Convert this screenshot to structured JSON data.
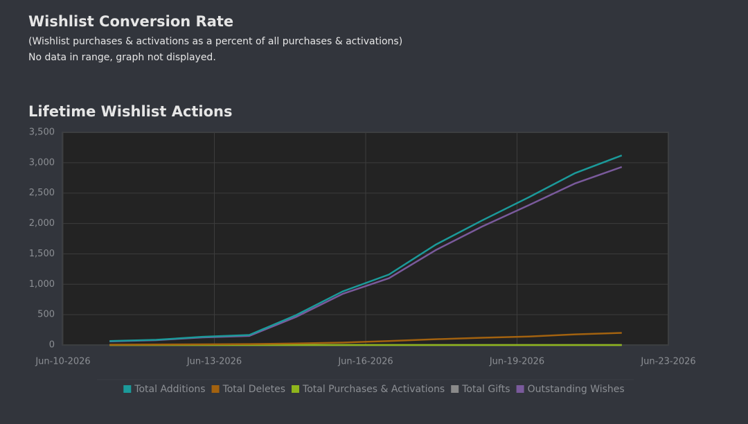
{
  "conversion": {
    "title": "Wishlist Conversion Rate",
    "subtitle": "(Wishlist purchases & activations as a percent of all purchases & activations)",
    "note": "No data in range, graph not displayed."
  },
  "chart_data": {
    "type": "line",
    "title": "Lifetime Wishlist Actions",
    "x": [
      "2026-06-11",
      "2026-06-12",
      "2026-06-13",
      "2026-06-14",
      "2026-06-15",
      "2026-06-16",
      "2026-06-17",
      "2026-06-18",
      "2026-06-19",
      "2026-06-20",
      "2026-06-21",
      "2026-06-22"
    ],
    "series": [
      {
        "name": "Total Additions",
        "color": "#1b9a9a",
        "values": [
          65,
          85,
          135,
          165,
          490,
          880,
          1160,
          1650,
          2050,
          2430,
          2830,
          3120
        ]
      },
      {
        "name": "Total Deletes",
        "color": "#a3620f",
        "values": [
          5,
          8,
          12,
          15,
          25,
          40,
          65,
          95,
          120,
          140,
          175,
          200
        ]
      },
      {
        "name": "Total Purchases & Activations",
        "color": "#8fb51c",
        "values": [
          0,
          0,
          0,
          0,
          0,
          0,
          0,
          0,
          0,
          0,
          0,
          0
        ]
      },
      {
        "name": "Total Gifts",
        "color": "#8a8a8a",
        "values": [
          0,
          0,
          0,
          0,
          0,
          0,
          0,
          0,
          0,
          0,
          0,
          0
        ]
      },
      {
        "name": "Outstanding Wishes",
        "color": "#7a5a9c",
        "values": [
          60,
          80,
          125,
          150,
          460,
          840,
          1100,
          1560,
          1950,
          2300,
          2660,
          2930
        ]
      }
    ],
    "xlim": [
      "2026-06-10T00:00",
      "2026-06-23T00:00"
    ],
    "xticks": [
      {
        "value": "2026-06-10T00:00",
        "label": "Jun-10-2026"
      },
      {
        "value": "2026-06-13T06:00",
        "label": "Jun-13-2026"
      },
      {
        "value": "2026-06-16T12:00",
        "label": "Jun-16-2026"
      },
      {
        "value": "2026-06-19T18:00",
        "label": "Jun-19-2026"
      },
      {
        "value": "2026-06-23T00:00",
        "label": "Jun-23-2026"
      }
    ],
    "ylim": [
      0,
      3500
    ],
    "yticks": [
      0,
      500,
      {
        "value": 1000,
        "label": "1,000"
      },
      {
        "value": 1500,
        "label": "1,500"
      },
      {
        "value": 2000,
        "label": "2,000"
      },
      {
        "value": 2500,
        "label": "2,500"
      },
      {
        "value": 3000,
        "label": "3,000"
      },
      {
        "value": 3500,
        "label": "3,500"
      }
    ],
    "grid": true
  }
}
